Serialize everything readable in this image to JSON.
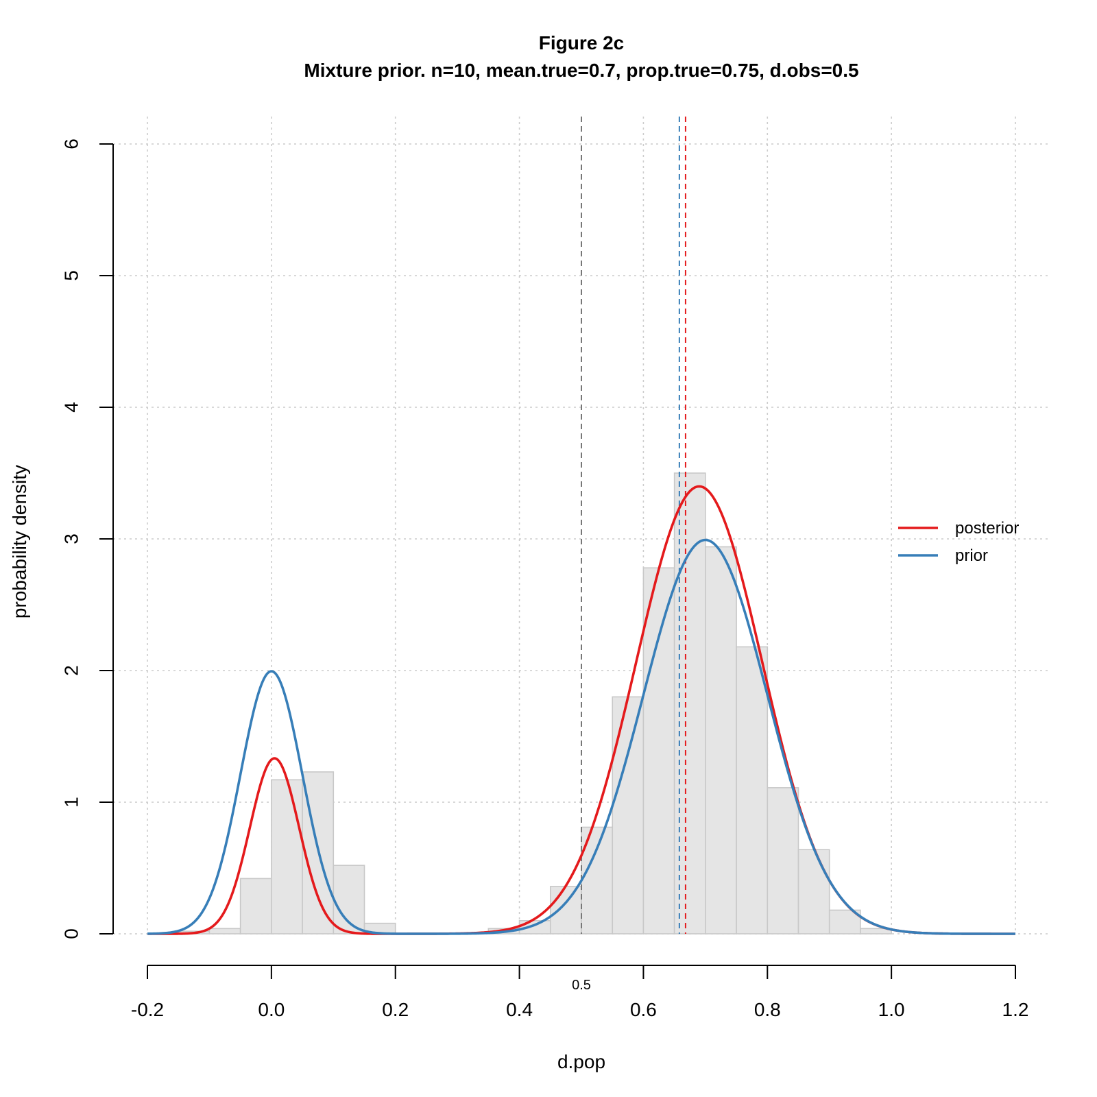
{
  "chart_data": {
    "type": "histogram",
    "title": "Figure 2c",
    "subtitle": "Mixture prior. n=10, mean.true=0.7, prop.true=0.75, d.obs=0.5",
    "xlabel": "d.pop",
    "ylabel": "probability density",
    "xlim": [
      -0.2,
      1.2
    ],
    "ylim": [
      0,
      6
    ],
    "x_ticks": [
      "-0.2",
      "0.0",
      "0.2",
      "0.4",
      "0.6",
      "0.8",
      "1.0",
      "1.2"
    ],
    "y_ticks": [
      "0",
      "1",
      "2",
      "3",
      "4",
      "5",
      "6"
    ],
    "grid": true,
    "histogram": {
      "bin_width": 0.05,
      "bins": [
        {
          "start": -0.15,
          "value": 0.02
        },
        {
          "start": -0.1,
          "value": 0.04
        },
        {
          "start": -0.05,
          "value": 0.42
        },
        {
          "start": 0.0,
          "value": 1.17
        },
        {
          "start": 0.05,
          "value": 1.23
        },
        {
          "start": 0.1,
          "value": 0.52
        },
        {
          "start": 0.15,
          "value": 0.08
        },
        {
          "start": 0.35,
          "value": 0.04
        },
        {
          "start": 0.4,
          "value": 0.1
        },
        {
          "start": 0.45,
          "value": 0.36
        },
        {
          "start": 0.5,
          "value": 0.81
        },
        {
          "start": 0.55,
          "value": 1.8
        },
        {
          "start": 0.6,
          "value": 2.78
        },
        {
          "start": 0.65,
          "value": 3.5
        },
        {
          "start": 0.7,
          "value": 2.94
        },
        {
          "start": 0.75,
          "value": 2.18
        },
        {
          "start": 0.8,
          "value": 1.11
        },
        {
          "start": 0.85,
          "value": 0.64
        },
        {
          "start": 0.9,
          "value": 0.18
        },
        {
          "start": 0.95,
          "value": 0.04
        }
      ],
      "fill": "#e5e5e5",
      "border": "#c8c8c8"
    },
    "series": [
      {
        "name": "posterior",
        "color": "#e41a1c",
        "components": [
          {
            "weight": 0.1327,
            "mean": 0.005,
            "sd": 0.0397
          },
          {
            "weight": 0.8673,
            "mean": 0.69,
            "sd": 0.1018
          }
        ]
      },
      {
        "name": "prior",
        "color": "#377eb8",
        "components": [
          {
            "weight": 0.25,
            "mean": 0.0,
            "sd": 0.05
          },
          {
            "weight": 0.75,
            "mean": 0.7,
            "sd": 0.1
          }
        ]
      }
    ],
    "vlines": [
      {
        "x": 0.5,
        "color": "#777777",
        "label": ""
      },
      {
        "x": 0.658,
        "color": "#377eb8",
        "label": ""
      },
      {
        "x": 0.668,
        "color": "#e41a1c",
        "label": ""
      }
    ],
    "annotation": {
      "x": 0.5,
      "text": "0.5",
      "color": "#4a6fa5"
    },
    "legend": {
      "placement": "right",
      "entries": [
        {
          "label": "posterior",
          "color": "#e41a1c"
        },
        {
          "label": "prior",
          "color": "#377eb8"
        }
      ]
    }
  }
}
